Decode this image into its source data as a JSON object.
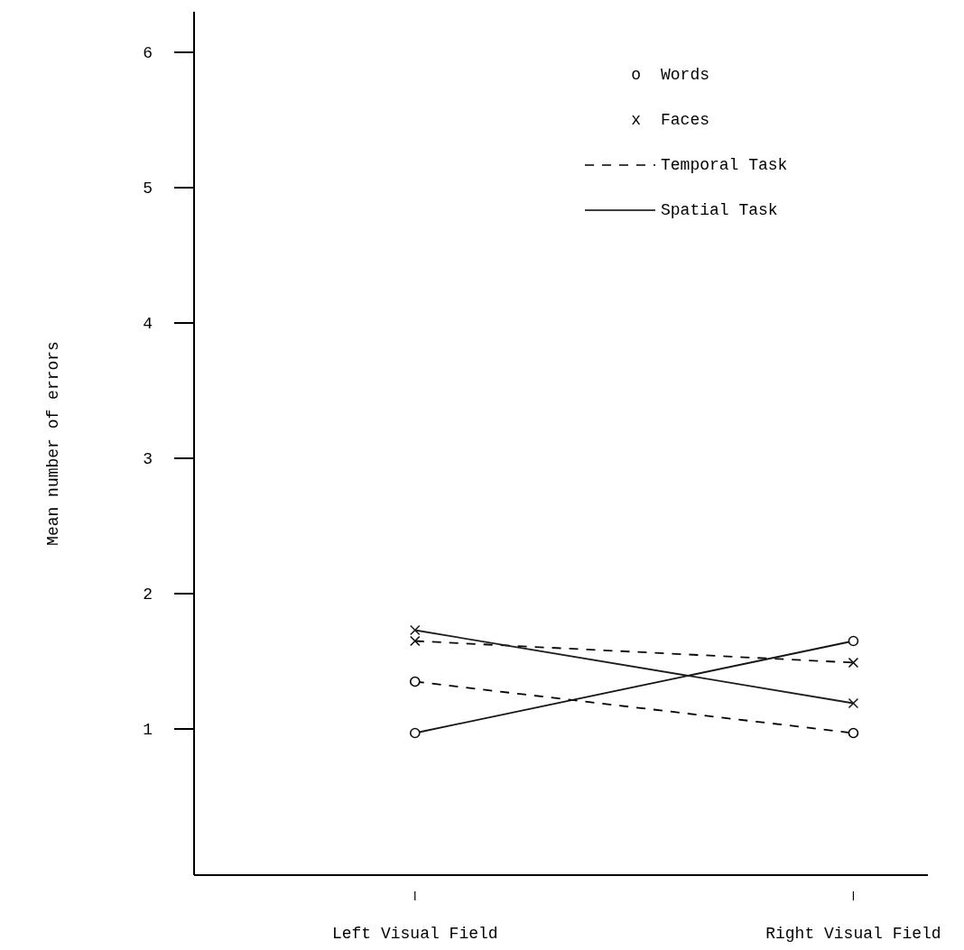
{
  "chart_data": {
    "type": "line",
    "ylabel": "Mean number of errors",
    "categories": [
      "Left Visual Field",
      "Right Visual Field"
    ],
    "ylim": [
      -0.08,
      6.3
    ],
    "yticks": [
      1,
      2,
      3,
      4,
      5,
      6
    ],
    "grid": false,
    "annotations": [
      "o",
      "Words",
      "x",
      "Faces",
      "Temporal Task",
      "Spatial Task"
    ],
    "series": [
      {
        "color": "#000000",
        "marker": "circle",
        "line_style": "dashed",
        "values": [
          1.35,
          0.97
        ]
      },
      {
        "color": "#0a0a0a",
        "marker": "cross",
        "line_style": "dashed",
        "values": [
          1.65,
          1.49
        ]
      },
      {
        "color": "#141414",
        "marker": "circle",
        "line_style": "solid",
        "values": [
          0.97,
          1.65
        ]
      },
      {
        "color": "#1e1e1e",
        "marker": "cross",
        "line_style": "solid",
        "values": [
          1.73,
          1.19
        ]
      }
    ]
  }
}
